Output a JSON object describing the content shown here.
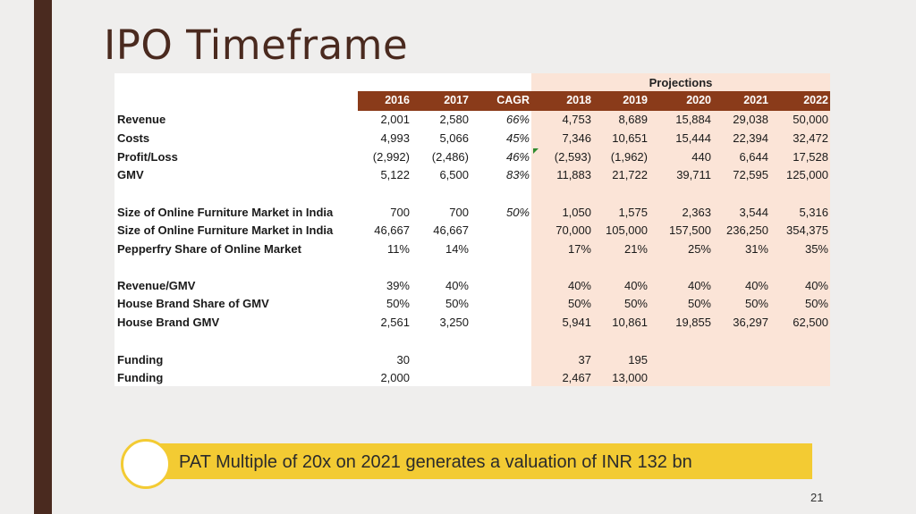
{
  "slide": {
    "title": "IPO Timeframe",
    "page_number": "21"
  },
  "table": {
    "projections_label": "Projections",
    "columns": [
      "2016",
      "2017",
      "CAGR",
      "2018",
      "2019",
      "2020",
      "2021",
      "2022"
    ],
    "rows": [
      {
        "label": "Revenue",
        "cells": [
          "2,001",
          "2,580",
          "66%",
          "4,753",
          "8,689",
          "15,884",
          "29,038",
          "50,000"
        ]
      },
      {
        "label": "Costs",
        "cells": [
          "4,993",
          "5,066",
          "45%",
          "7,346",
          "10,651",
          "15,444",
          "22,394",
          "32,472"
        ]
      },
      {
        "label": "Profit/Loss",
        "cells": [
          "(2,992)",
          "(2,486)",
          "46%",
          "(2,593)",
          "(1,962)",
          "440",
          "6,644",
          "17,528"
        ]
      },
      {
        "label": "GMV",
        "cells": [
          "5,122",
          "6,500",
          "83%",
          "11,883",
          "21,722",
          "39,711",
          "72,595",
          "125,000"
        ]
      },
      {
        "label": "Size of Online Furniture Market in India",
        "cells": [
          "700",
          "700",
          "50%",
          "1,050",
          "1,575",
          "2,363",
          "3,544",
          "5,316"
        ]
      },
      {
        "label": "Size of Online Furniture Market in India",
        "cells": [
          "46,667",
          "46,667",
          "",
          "70,000",
          "105,000",
          "157,500",
          "236,250",
          "354,375"
        ]
      },
      {
        "label": "Pepperfry Share of Online Market",
        "cells": [
          "11%",
          "14%",
          "",
          "17%",
          "21%",
          "25%",
          "31%",
          "35%"
        ]
      },
      {
        "label": "Revenue/GMV",
        "cells": [
          "39%",
          "40%",
          "",
          "40%",
          "40%",
          "40%",
          "40%",
          "40%"
        ]
      },
      {
        "label": "House Brand Share of GMV",
        "cells": [
          "50%",
          "50%",
          "",
          "50%",
          "50%",
          "50%",
          "50%",
          "50%"
        ]
      },
      {
        "label": "House Brand GMV",
        "cells": [
          "2,561",
          "3,250",
          "",
          "5,941",
          "10,861",
          "19,855",
          "36,297",
          "62,500"
        ]
      },
      {
        "label": "Funding",
        "cells": [
          "30",
          "",
          "",
          "37",
          "195",
          "",
          "",
          ""
        ]
      },
      {
        "label": "Funding",
        "cells": [
          "2,000",
          "",
          "",
          "2,467",
          "13,000",
          "",
          "",
          ""
        ]
      }
    ]
  },
  "callout": {
    "text": "PAT Multiple of 20x on 2021 generates a valuation of INR 132 bn"
  },
  "colors": {
    "title": "#4a2a1f",
    "header_bg": "#8a3b1a",
    "projection_bg": "#fbe4d7",
    "callout_bg": "#f3cb33"
  }
}
